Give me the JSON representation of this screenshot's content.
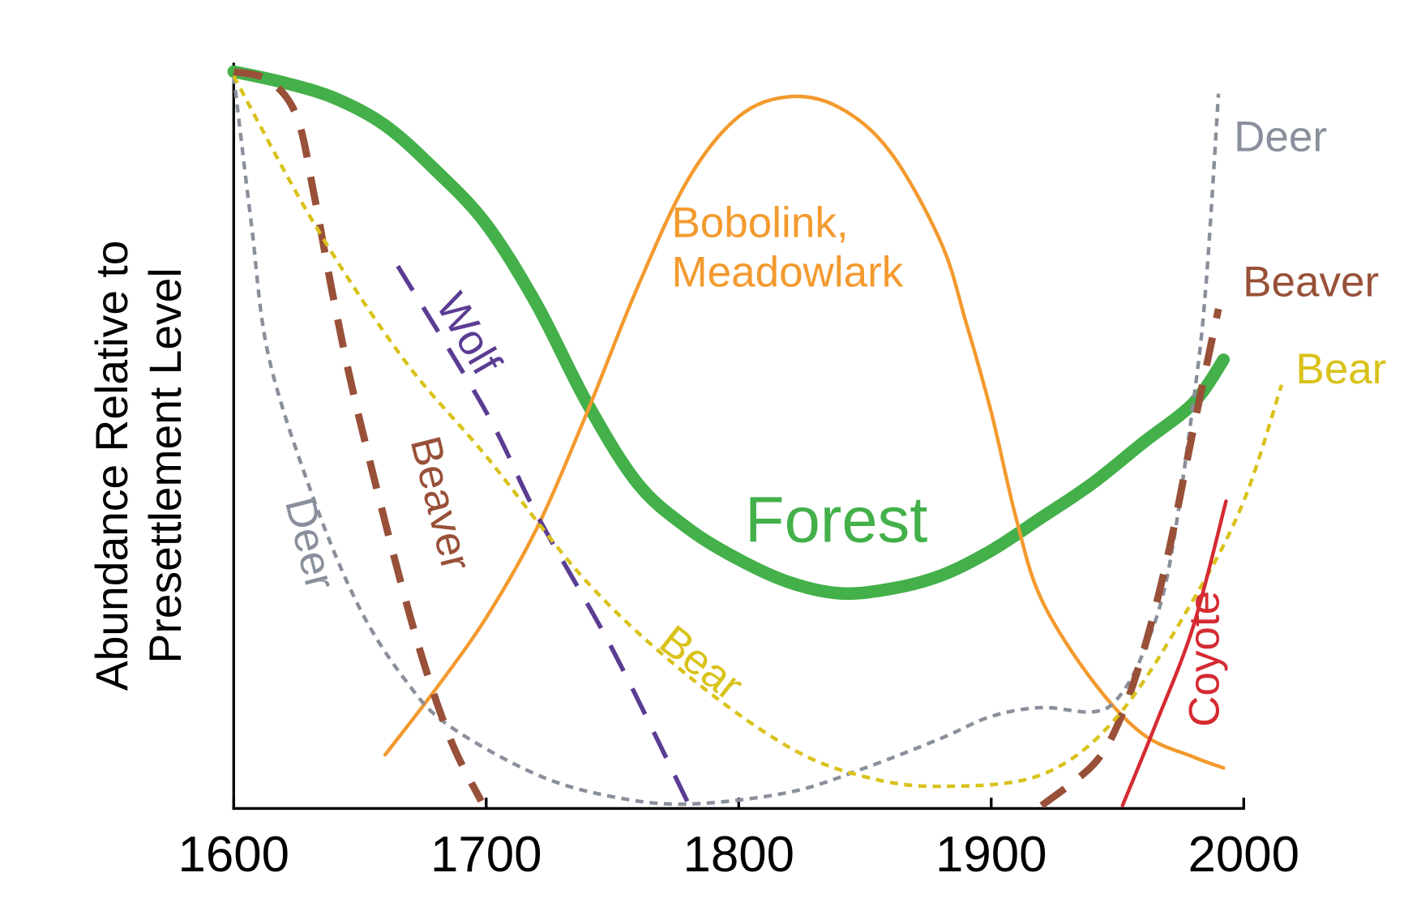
{
  "chart_data": {
    "type": "line",
    "y_label": "Abundance Relative to Presettlement Level",
    "xlim": [
      1600,
      2000
    ],
    "xticks": [
      1600,
      1700,
      1800,
      1900,
      2000
    ],
    "ylim": [
      0,
      100
    ],
    "series": [
      {
        "name": "Forest",
        "color": "#43b049",
        "line_style": "thick",
        "x": [
          1600,
          1620,
          1640,
          1660,
          1680,
          1700,
          1720,
          1740,
          1760,
          1780,
          1800,
          1820,
          1840,
          1860,
          1880,
          1900,
          1920,
          1940,
          1960,
          1980,
          1992
        ],
        "values": [
          100,
          98.5,
          96.4,
          92.7,
          86.6,
          79.3,
          68.4,
          55.0,
          44.1,
          38.0,
          33.8,
          30.7,
          29.2,
          29.8,
          31.6,
          35.0,
          39.5,
          44.1,
          49.6,
          55.0,
          60.9
        ]
      },
      {
        "name": "Bobolink, Meadowlark",
        "color": "#f39a2e",
        "line_style": "solid",
        "x": [
          1660,
          1680,
          1700,
          1720,
          1740,
          1760,
          1780,
          1800,
          1820,
          1840,
          1860,
          1880,
          1890,
          1900,
          1910,
          1920,
          1940,
          1960,
          1980,
          1992
        ],
        "values": [
          7.3,
          16.2,
          25.9,
          38.0,
          53.8,
          70.8,
          85.4,
          93.9,
          96.6,
          95.1,
          89.1,
          76.9,
          66.0,
          53.8,
          39.2,
          28.3,
          17.4,
          10.1,
          7.0,
          5.5
        ]
      },
      {
        "name": "Deer",
        "color": "#8a8f9c",
        "line_style": "dotted",
        "x": [
          1600,
          1607,
          1614,
          1632,
          1650,
          1668,
          1685,
          1720,
          1750,
          1780,
          1820,
          1850,
          1880,
          1900,
          1920,
          1940,
          1950,
          1960,
          1970,
          1980,
          1985,
          1990
        ],
        "values": [
          99.4,
          79.3,
          61.1,
          41.7,
          27.1,
          17.4,
          11.3,
          4.6,
          1.6,
          0.6,
          2.2,
          5.5,
          9.5,
          12.5,
          13.7,
          13.1,
          14.9,
          21.0,
          32.0,
          55.0,
          70.8,
          97.0
        ]
      },
      {
        "name": "Beaver",
        "color": "#985038",
        "line_style": "dashed",
        "x": [
          1600,
          1614,
          1625,
          1632,
          1640,
          1650,
          1670,
          1685,
          1698,
          1800,
          1920,
          1940,
          1950,
          1960,
          1970,
          1980,
          1990
        ],
        "values": [
          100,
          98.8,
          93.9,
          83.0,
          68.4,
          52.6,
          25.9,
          10.1,
          1.0,
          null,
          0.4,
          5.8,
          11.3,
          21.0,
          34.4,
          51.4,
          67.8
        ]
      },
      {
        "name": "Wolf",
        "color": "#5b3c93",
        "line_style": "dashed",
        "x": [
          1665,
          1700,
          1720,
          1750,
          1780
        ],
        "values": [
          73.6,
          53.8,
          39.9,
          21.6,
          0.7
        ]
      },
      {
        "name": "Bear",
        "color": "#d9c21a",
        "line_style": "dotted",
        "x": [
          1600,
          1632,
          1667,
          1700,
          1740,
          1780,
          1820,
          1850,
          1880,
          1920,
          1950,
          1980,
          2000,
          2015
        ],
        "values": [
          99.4,
          79.3,
          61.1,
          47.8,
          30.7,
          18.0,
          8.3,
          4.3,
          3.0,
          4.6,
          12.5,
          28.3,
          41.7,
          57.5
        ]
      },
      {
        "name": "Coyote",
        "color": "#d52a31",
        "line_style": "solid",
        "x": [
          1952,
          1965,
          1980,
          1993
        ],
        "values": [
          0.4,
          11.3,
          24.7,
          41.7
        ]
      }
    ]
  }
}
